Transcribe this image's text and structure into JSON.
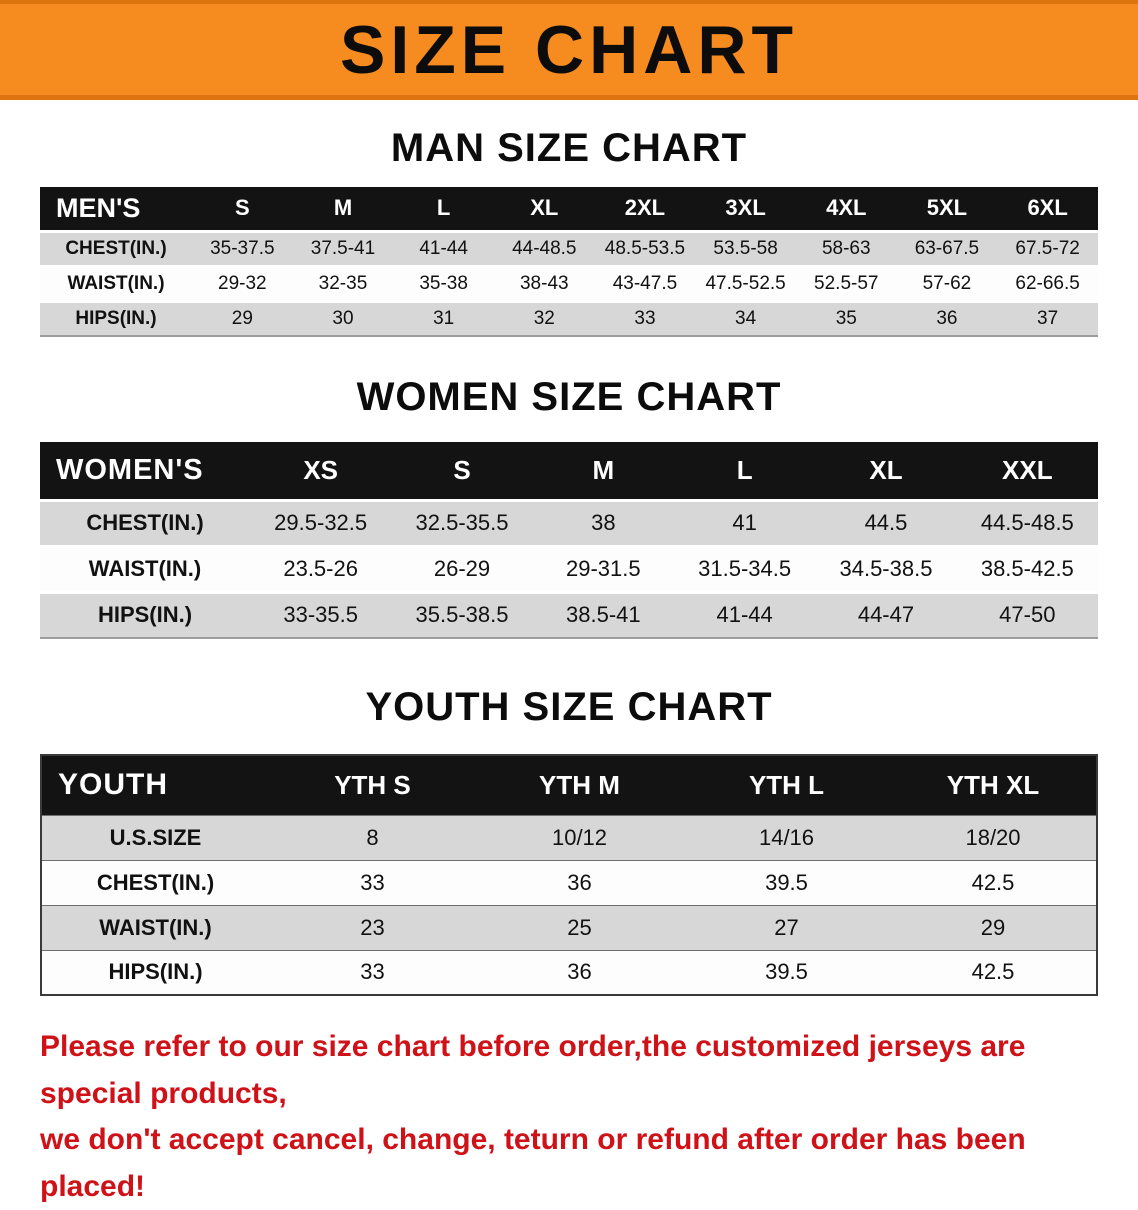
{
  "banner": {
    "title": "SIZE CHART"
  },
  "colors": {
    "banner_orange": "#f68b1f",
    "table_header_bg": "#131313",
    "row_gray": "#d7d7d7",
    "notice_red": "#cf1118"
  },
  "tables": [
    {
      "id": "men",
      "title": "MAN SIZE CHART",
      "header": [
        "MEN'S",
        "S",
        "M",
        "L",
        "XL",
        "2XL",
        "3XL",
        "4XL",
        "5XL",
        "6XL"
      ],
      "rows": [
        {
          "label": "CHEST(IN.)",
          "values": [
            "35-37.5",
            "37.5-41",
            "41-44",
            "44-48.5",
            "48.5-53.5",
            "53.5-58",
            "58-63",
            "63-67.5",
            "67.5-72"
          ]
        },
        {
          "label": "WAIST(IN.)",
          "values": [
            "29-32",
            "32-35",
            "35-38",
            "38-43",
            "43-47.5",
            "47.5-52.5",
            "52.5-57",
            "57-62",
            "62-66.5"
          ]
        },
        {
          "label": "HIPS(IN.)",
          "values": [
            "29",
            "30",
            "31",
            "32",
            "33",
            "34",
            "35",
            "36",
            "37"
          ]
        }
      ]
    },
    {
      "id": "women",
      "title": "WOMEN SIZE CHART",
      "header": [
        "WOMEN'S",
        "XS",
        "S",
        "M",
        "L",
        "XL",
        "XXL"
      ],
      "rows": [
        {
          "label": "CHEST(IN.)",
          "values": [
            "29.5-32.5",
            "32.5-35.5",
            "38",
            "41",
            "44.5",
            "44.5-48.5"
          ]
        },
        {
          "label": "WAIST(IN.)",
          "values": [
            "23.5-26",
            "26-29",
            "29-31.5",
            "31.5-34.5",
            "34.5-38.5",
            "38.5-42.5"
          ]
        },
        {
          "label": "HIPS(IN.)",
          "values": [
            "33-35.5",
            "35.5-38.5",
            "38.5-41",
            "41-44",
            "44-47",
            "47-50"
          ]
        }
      ]
    },
    {
      "id": "youth",
      "title": "YOUTH SIZE CHART",
      "header": [
        "YOUTH",
        "YTH S",
        "YTH M",
        "YTH L",
        "YTH XL"
      ],
      "rows": [
        {
          "label": "U.S.SIZE",
          "values": [
            "8",
            "10/12",
            "14/16",
            "18/20"
          ]
        },
        {
          "label": "CHEST(IN.)",
          "values": [
            "33",
            "36",
            "39.5",
            "42.5"
          ]
        },
        {
          "label": "WAIST(IN.)",
          "values": [
            "23",
            "25",
            "27",
            "29"
          ]
        },
        {
          "label": "HIPS(IN.)",
          "values": [
            "33",
            "36",
            "39.5",
            "42.5"
          ]
        }
      ]
    }
  ],
  "footer": {
    "line1": "Please refer to our size chart before order,the customized jerseys are special products,",
    "line2": "we don't accept cancel, change, teturn or refund after order has been placed!"
  }
}
